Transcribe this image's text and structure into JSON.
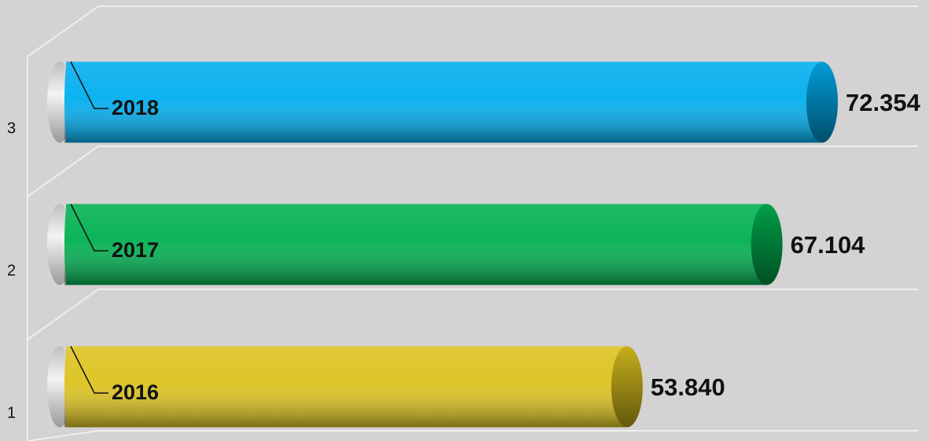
{
  "chart_data": {
    "type": "bar",
    "orientation": "horizontal",
    "categories": [
      "1",
      "2",
      "3"
    ],
    "bar_labels": [
      "2016",
      "2017",
      "2018"
    ],
    "values": [
      53.84,
      67.104,
      72.354
    ],
    "value_labels": [
      "53.840",
      "67.104",
      "72.354"
    ],
    "colors": [
      "#dcc21e",
      "#00b050",
      "#00aeef"
    ]
  }
}
